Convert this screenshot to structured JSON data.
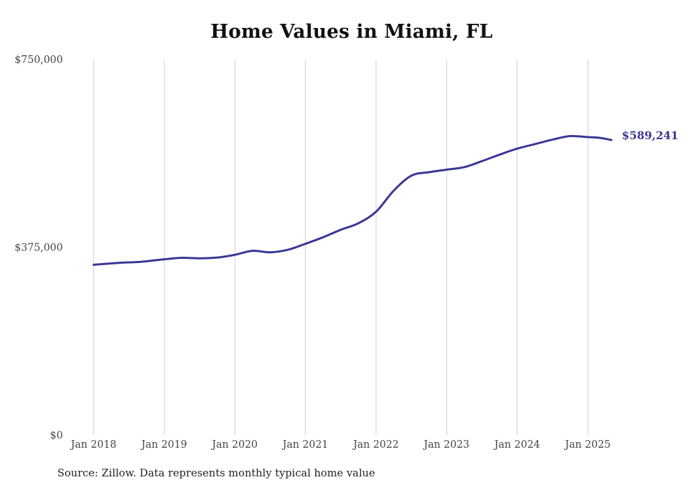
{
  "chart_data": {
    "type": "line",
    "title": "Home Values in Miami, FL",
    "xlabel": "",
    "ylabel": "",
    "ylim": [
      0,
      750000
    ],
    "y_ticks": [
      {
        "value": 0,
        "label": "$0"
      },
      {
        "value": 375000,
        "label": "$375,000"
      },
      {
        "value": 750000,
        "label": "$750,000"
      }
    ],
    "x_ticks": [
      {
        "value": "2018-01",
        "label": "Jan 2018"
      },
      {
        "value": "2019-01",
        "label": "Jan 2019"
      },
      {
        "value": "2020-01",
        "label": "Jan 2020"
      },
      {
        "value": "2021-01",
        "label": "Jan 2021"
      },
      {
        "value": "2022-01",
        "label": "Jan 2022"
      },
      {
        "value": "2023-01",
        "label": "Jan 2023"
      },
      {
        "value": "2024-01",
        "label": "Jan 2024"
      },
      {
        "value": "2025-01",
        "label": "Jan 2025"
      }
    ],
    "grid": "vertical",
    "legend": "none",
    "series": [
      {
        "color": "#3a3795",
        "end_label": "$589,241",
        "points": [
          {
            "x": "2018-01",
            "y": 340000
          },
          {
            "x": "2018-03",
            "y": 342000
          },
          {
            "x": "2018-06",
            "y": 344500
          },
          {
            "x": "2018-09",
            "y": 346000
          },
          {
            "x": "2019-01",
            "y": 351000
          },
          {
            "x": "2019-04",
            "y": 354000
          },
          {
            "x": "2019-07",
            "y": 353000
          },
          {
            "x": "2019-10",
            "y": 354500
          },
          {
            "x": "2020-01",
            "y": 360000
          },
          {
            "x": "2020-04",
            "y": 368000
          },
          {
            "x": "2020-07",
            "y": 365000
          },
          {
            "x": "2020-10",
            "y": 370000
          },
          {
            "x": "2021-01",
            "y": 382000
          },
          {
            "x": "2021-04",
            "y": 395000
          },
          {
            "x": "2021-07",
            "y": 410000
          },
          {
            "x": "2021-10",
            "y": 423000
          },
          {
            "x": "2022-01",
            "y": 446000
          },
          {
            "x": "2022-04",
            "y": 488000
          },
          {
            "x": "2022-07",
            "y": 518000
          },
          {
            "x": "2022-10",
            "y": 525000
          },
          {
            "x": "2023-01",
            "y": 530000
          },
          {
            "x": "2023-04",
            "y": 535000
          },
          {
            "x": "2023-07",
            "y": 547000
          },
          {
            "x": "2023-10",
            "y": 560000
          },
          {
            "x": "2024-01",
            "y": 572000
          },
          {
            "x": "2024-04",
            "y": 581000
          },
          {
            "x": "2024-07",
            "y": 590000
          },
          {
            "x": "2024-10",
            "y": 597000
          },
          {
            "x": "2025-01",
            "y": 595000
          },
          {
            "x": "2025-03",
            "y": 593500
          },
          {
            "x": "2025-05",
            "y": 589241
          }
        ]
      }
    ]
  },
  "source_note": "Source: Zillow. Data represents monthly typical home value"
}
